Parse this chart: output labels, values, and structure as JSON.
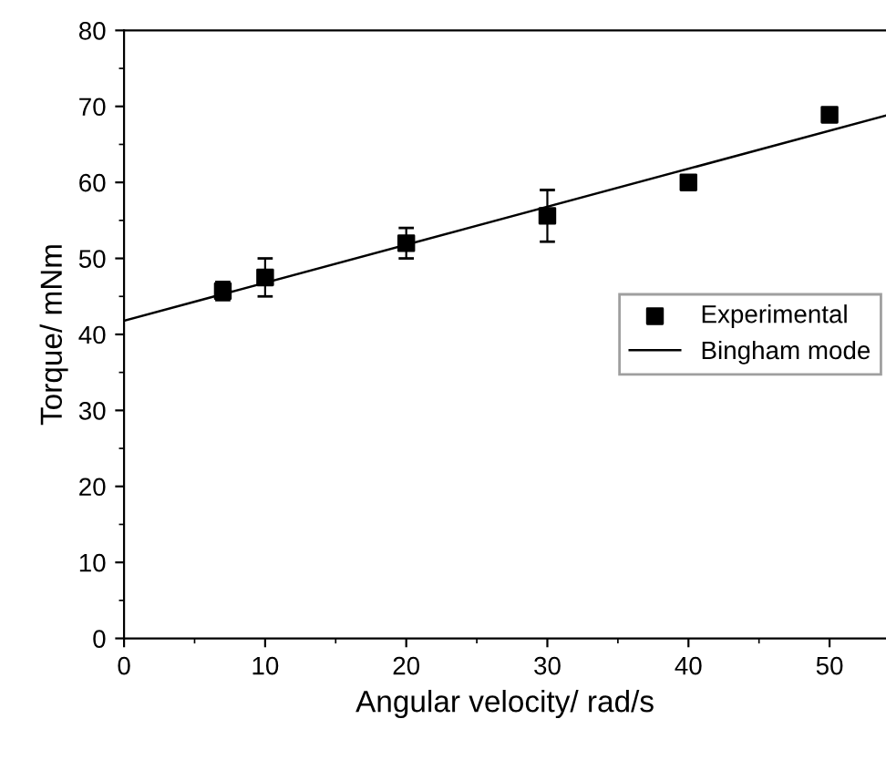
{
  "chart_data": {
    "type": "scatter",
    "xlabel": "Angular velocity/ rad/s",
    "ylabel": "Torque/ mNm",
    "xlim": [
      0,
      54
    ],
    "ylim": [
      0,
      80
    ],
    "xticks": [
      0,
      10,
      20,
      30,
      40,
      50
    ],
    "yticks": [
      0,
      10,
      20,
      30,
      40,
      50,
      60,
      70,
      80
    ],
    "grid": false,
    "legend": "right",
    "series": [
      {
        "name": "Experimental",
        "marker": "square",
        "color": "#000000",
        "x": [
          7,
          10,
          20,
          30,
          40,
          50
        ],
        "values": [
          45.7,
          47.5,
          52.0,
          55.6,
          60.0,
          68.9
        ],
        "errors": [
          1.2,
          2.5,
          2.0,
          3.4,
          null,
          null
        ]
      },
      {
        "name": "Bingham mode",
        "type": "line",
        "color": "#000000",
        "line_style": "solid",
        "marker": "none",
        "x": [
          0,
          54
        ],
        "values": [
          41.8,
          68.8
        ]
      }
    ]
  }
}
